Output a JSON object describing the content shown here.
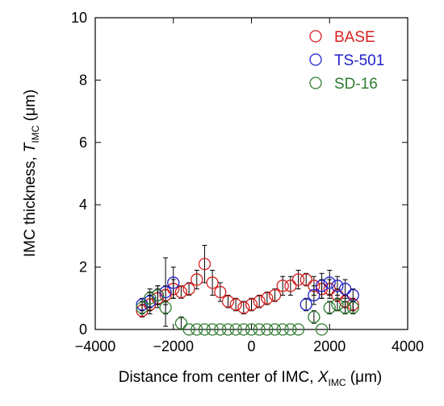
{
  "chart_data": {
    "type": "scatter",
    "title": "",
    "xlabel": {
      "main": "Distance from center of IMC, ",
      "symbol": "X",
      "subscript": "IMC",
      "unit": " (μm)"
    },
    "ylabel": {
      "main": "IMC thickness, ",
      "symbol": "T",
      "subscript": "IMC",
      "unit": " (μm)"
    },
    "xlim": [
      -4000,
      4000
    ],
    "ylim": [
      0,
      10
    ],
    "xticks": [
      -4000,
      -2000,
      0,
      2000,
      4000
    ],
    "xtick_labels": [
      "−4000",
      "−2000",
      "0",
      "2000",
      "4000"
    ],
    "yticks": [
      0,
      2,
      4,
      6,
      8,
      10
    ],
    "ytick_labels": [
      "0",
      "2",
      "4",
      "6",
      "8",
      "10"
    ],
    "grid": false,
    "legend_position": "top-right",
    "series": [
      {
        "name": "BASE",
        "color": "#d62020",
        "x": [
          -2800,
          -2600,
          -2400,
          -2200,
          -2000,
          -1800,
          -1600,
          -1400,
          -1200,
          -1000,
          -800,
          -600,
          -400,
          -200,
          0,
          200,
          400,
          600,
          800,
          1000,
          1200,
          1400,
          1600,
          1800,
          2000,
          2200,
          2400,
          2600
        ],
        "y": [
          0.6,
          0.8,
          1.0,
          1.1,
          1.3,
          1.2,
          1.3,
          1.6,
          2.1,
          1.5,
          1.2,
          0.9,
          0.8,
          0.7,
          0.8,
          0.9,
          1.0,
          1.1,
          1.4,
          1.4,
          1.6,
          1.6,
          1.4,
          1.3,
          1.3,
          1.1,
          0.9,
          0.8
        ],
        "err": [
          0.2,
          0.3,
          0.3,
          0.3,
          0.3,
          0.2,
          0.2,
          0.3,
          0.6,
          0.4,
          0.3,
          0.2,
          0.2,
          0.2,
          0.2,
          0.2,
          0.2,
          0.2,
          0.3,
          0.3,
          0.3,
          0.2,
          0.3,
          0.3,
          0.3,
          0.2,
          0.2,
          0.2
        ]
      },
      {
        "name": "TS-501",
        "color": "#2222cc",
        "x": [
          -2800,
          -2600,
          -2400,
          -2200,
          -2000,
          1400,
          1600,
          1800,
          2000,
          2200,
          2400,
          2600
        ],
        "y": [
          0.8,
          0.9,
          1.1,
          1.2,
          1.5,
          0.8,
          1.1,
          1.4,
          1.5,
          1.4,
          1.3,
          1.1
        ],
        "err": [
          0.2,
          0.3,
          0.3,
          1.1,
          0.5,
          0.2,
          0.3,
          0.4,
          0.4,
          0.3,
          0.3,
          0.2
        ]
      },
      {
        "name": "SD-16",
        "color": "#2e7d32",
        "x": [
          -2800,
          -2600,
          -2400,
          -2200,
          -1800,
          -1600,
          -1400,
          -1200,
          -1000,
          -800,
          -600,
          -400,
          -200,
          0,
          200,
          400,
          600,
          800,
          1000,
          1200,
          1600,
          1800,
          2000,
          2200,
          2400,
          2600
        ],
        "y": [
          0.7,
          1.0,
          1.1,
          0.7,
          0.2,
          0.0,
          0.0,
          0.0,
          0.0,
          0.0,
          0.0,
          0.0,
          0.0,
          0.0,
          0.0,
          0.0,
          0.0,
          0.0,
          0.0,
          0.0,
          0.4,
          0.0,
          0.7,
          0.8,
          0.7,
          0.7
        ],
        "err": [
          0.2,
          0.3,
          0.3,
          0.2,
          0.2,
          0,
          0,
          0,
          0,
          0,
          0,
          0,
          0,
          0,
          0,
          0,
          0,
          0,
          0,
          0,
          0.2,
          0,
          0.2,
          0.2,
          0.2,
          0.2
        ]
      }
    ]
  }
}
